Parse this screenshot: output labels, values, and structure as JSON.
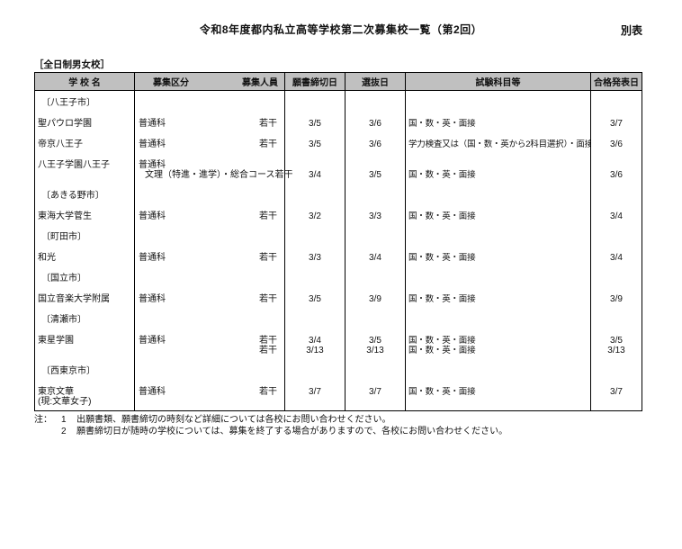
{
  "page": {
    "title": "令和8年度都内私立高等学校第二次募集校一覧（第2回）",
    "appendix_label": "別表",
    "section_label": "［全日制男女校］"
  },
  "table": {
    "header_bg": "#c0c0c0",
    "columns": {
      "school": "学 校 名",
      "division": "募集区分",
      "capacity": "募集人員",
      "deadline": "願書締切日",
      "selection": "選抜日",
      "subjects": "試験科目等",
      "announcement": "合格発表日"
    },
    "rows": [
      {
        "type": "area",
        "label": "〔八王子市〕"
      },
      {
        "type": "school",
        "name": [
          "聖パウロ学園"
        ],
        "division": [
          "普通科"
        ],
        "capacity": [
          "若干"
        ],
        "deadline": [
          "3/5"
        ],
        "selection": [
          "3/6"
        ],
        "subjects": [
          "国・数・英・面接"
        ],
        "announcement": [
          "3/7"
        ]
      },
      {
        "type": "school",
        "name": [
          "帝京八王子"
        ],
        "division": [
          "普通科"
        ],
        "capacity": [
          "若干"
        ],
        "deadline": [
          "3/5"
        ],
        "selection": [
          "3/6"
        ],
        "subjects": [
          "学力検査又は（国・数・英から2科目選択）・面接"
        ],
        "announcement": [
          "3/6"
        ]
      },
      {
        "type": "school",
        "name": [
          "八王子学園八王子"
        ],
        "division": [
          "普通科",
          "文理（特進・進学）・総合コース"
        ],
        "capacity": [
          "",
          "若干"
        ],
        "deadline": [
          "",
          "3/4"
        ],
        "selection": [
          "",
          "3/5"
        ],
        "subjects": [
          "",
          "国・数・英・面接"
        ],
        "announcement": [
          "",
          "3/6"
        ]
      },
      {
        "type": "area",
        "label": "〔あきる野市〕"
      },
      {
        "type": "school",
        "name": [
          "東海大学菅生"
        ],
        "division": [
          "普通科"
        ],
        "capacity": [
          "若干"
        ],
        "deadline": [
          "3/2"
        ],
        "selection": [
          "3/3"
        ],
        "subjects": [
          "国・数・英・面接"
        ],
        "announcement": [
          "3/4"
        ]
      },
      {
        "type": "area",
        "label": "〔町田市〕"
      },
      {
        "type": "school",
        "name": [
          "和光"
        ],
        "division": [
          "普通科"
        ],
        "capacity": [
          "若干"
        ],
        "deadline": [
          "3/3"
        ],
        "selection": [
          "3/4"
        ],
        "subjects": [
          "国・数・英・面接"
        ],
        "announcement": [
          "3/4"
        ]
      },
      {
        "type": "area",
        "label": "〔国立市〕"
      },
      {
        "type": "school",
        "name": [
          "国立音楽大学附属"
        ],
        "division": [
          "普通科"
        ],
        "capacity": [
          "若干"
        ],
        "deadline": [
          "3/5"
        ],
        "selection": [
          "3/9"
        ],
        "subjects": [
          "国・数・英・面接"
        ],
        "announcement": [
          "3/9"
        ]
      },
      {
        "type": "area",
        "label": "〔清瀬市〕"
      },
      {
        "type": "school",
        "name": [
          "東星学園"
        ],
        "division": [
          "普通科",
          ""
        ],
        "capacity": [
          "若干",
          "若干"
        ],
        "deadline": [
          "3/4",
          "3/13"
        ],
        "selection": [
          "3/5",
          "3/13"
        ],
        "subjects": [
          "国・数・英・面接",
          "国・数・英・面接"
        ],
        "announcement": [
          "3/5",
          "3/13"
        ]
      },
      {
        "type": "area",
        "label": "〔西東京市〕"
      },
      {
        "type": "school",
        "name": [
          "東京文華",
          "(現:文華女子)"
        ],
        "division": [
          "普通科"
        ],
        "capacity": [
          "若干"
        ],
        "deadline": [
          "3/7"
        ],
        "selection": [
          "3/7"
        ],
        "subjects": [
          "国・数・英・面接"
        ],
        "announcement": [
          "3/7"
        ]
      }
    ]
  },
  "notes": {
    "prefix": "注：",
    "items": [
      {
        "num": "1",
        "text": "出願書類、願書締切の時刻など詳細については各校にお問い合わせください。"
      },
      {
        "num": "2",
        "text": "願書締切日が随時の学校については、募集を終了する場合がありますので、各校にお問い合わせください。"
      }
    ]
  }
}
